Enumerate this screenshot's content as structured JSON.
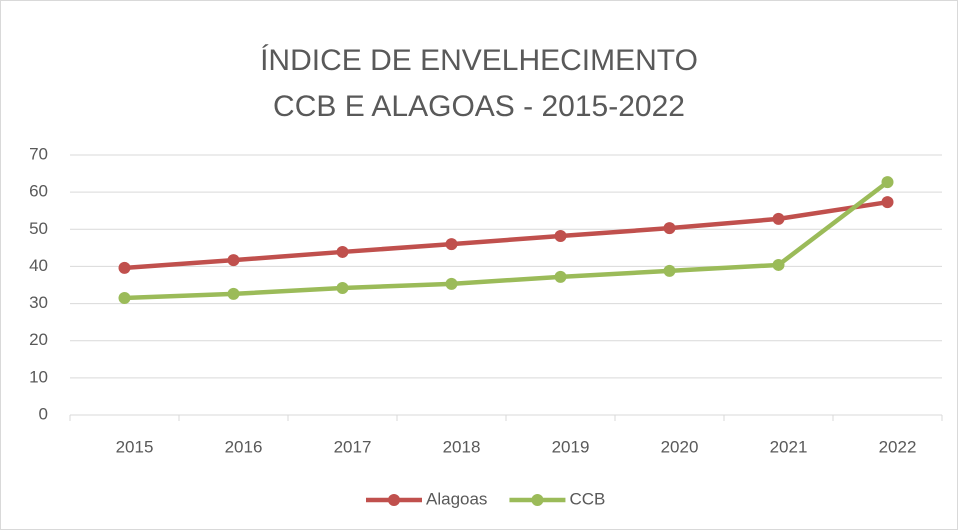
{
  "chart_data": {
    "type": "line",
    "title": "ÍNDICE DE ENVELHECIMENTO CCB E ALAGOAS - 2015-2022",
    "categories": [
      "2015",
      "2016",
      "2017",
      "2018",
      "2019",
      "2020",
      "2021",
      "2022"
    ],
    "series": [
      {
        "name": "Alagoas",
        "color": "#c0504d",
        "values": [
          39.6,
          41.7,
          43.9,
          46.0,
          48.2,
          50.3,
          52.8,
          57.3
        ]
      },
      {
        "name": "CCB",
        "color": "#9bbb59",
        "values": [
          31.5,
          32.6,
          34.2,
          35.3,
          37.2,
          38.8,
          40.4,
          62.7
        ]
      }
    ],
    "ylim": [
      0,
      70
    ],
    "yticks": [
      0,
      10,
      20,
      30,
      40,
      50,
      60,
      70
    ],
    "grid": true,
    "legend": "bottom"
  }
}
